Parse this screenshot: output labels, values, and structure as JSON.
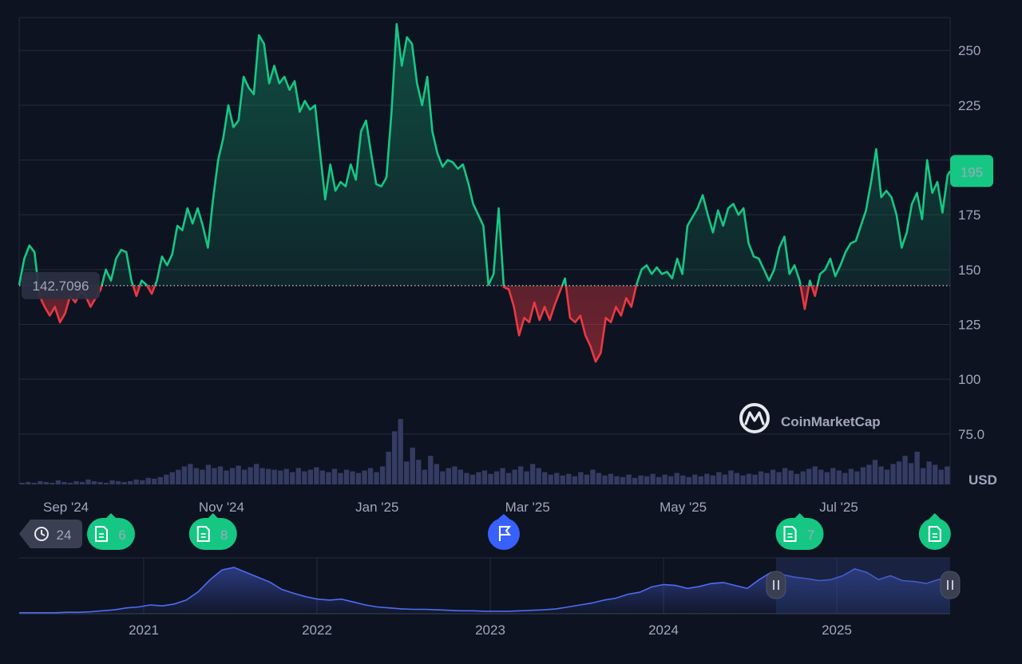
{
  "chart_data": {
    "type": "area",
    "currency_label": "USD",
    "baseline": {
      "value": 142.7096,
      "label": "142.7096"
    },
    "last_price": {
      "value": 195,
      "label": "195"
    },
    "y_axis": {
      "ticks": [
        75,
        100,
        125,
        150,
        175,
        200,
        225,
        250
      ],
      "labels": [
        "75.0",
        "100",
        "125",
        "150",
        "175",
        "",
        "225",
        "250"
      ],
      "ylim": [
        52,
        265
      ]
    },
    "x_axis": {
      "range": [
        "2024-08-24",
        "2025-08-24"
      ],
      "ticks": [
        {
          "date": "2024-09-01",
          "label": "Sep '24"
        },
        {
          "date": "2024-11-01",
          "label": "Nov '24"
        },
        {
          "date": "2025-01-01",
          "label": "Jan '25"
        },
        {
          "date": "2025-03-01",
          "label": "Mar '25"
        },
        {
          "date": "2025-05-01",
          "label": "May '25"
        },
        {
          "date": "2025-07-01",
          "label": "Jul '25"
        }
      ]
    },
    "colors": {
      "up": "#16c784",
      "down": "#ea3943",
      "volume": "#343c63",
      "navigator": "#4f6bf2",
      "flag": "#3861fb"
    },
    "series": [
      {
        "values": [
          [
            "2024-08-24",
            143
          ],
          [
            "2024-08-26",
            155
          ],
          [
            "2024-08-28",
            161
          ],
          [
            "2024-08-30",
            158
          ],
          [
            "2024-09-01",
            138
          ],
          [
            "2024-09-03",
            133
          ],
          [
            "2024-09-05",
            129
          ],
          [
            "2024-09-07",
            133
          ],
          [
            "2024-09-09",
            126
          ],
          [
            "2024-09-11",
            130
          ],
          [
            "2024-09-13",
            138
          ],
          [
            "2024-09-15",
            135
          ],
          [
            "2024-09-17",
            140
          ],
          [
            "2024-09-19",
            138
          ],
          [
            "2024-09-21",
            133
          ],
          [
            "2024-09-23",
            137
          ],
          [
            "2024-09-25",
            141
          ],
          [
            "2024-09-27",
            150
          ],
          [
            "2024-09-29",
            145
          ],
          [
            "2024-10-01",
            155
          ],
          [
            "2024-10-03",
            159
          ],
          [
            "2024-10-05",
            158
          ],
          [
            "2024-10-07",
            145
          ],
          [
            "2024-10-09",
            138
          ],
          [
            "2024-10-11",
            145
          ],
          [
            "2024-10-13",
            143
          ],
          [
            "2024-10-15",
            139
          ],
          [
            "2024-10-17",
            145
          ],
          [
            "2024-10-19",
            156
          ],
          [
            "2024-10-21",
            152
          ],
          [
            "2024-10-23",
            157
          ],
          [
            "2024-10-25",
            170
          ],
          [
            "2024-10-27",
            168
          ],
          [
            "2024-10-29",
            178
          ],
          [
            "2024-10-31",
            171
          ],
          [
            "2024-11-02",
            178
          ],
          [
            "2024-11-04",
            170
          ],
          [
            "2024-11-06",
            160
          ],
          [
            "2024-11-08",
            182
          ],
          [
            "2024-11-10",
            200
          ],
          [
            "2024-11-12",
            210
          ],
          [
            "2024-11-14",
            225
          ],
          [
            "2024-11-16",
            215
          ],
          [
            "2024-11-18",
            218
          ],
          [
            "2024-11-20",
            238
          ],
          [
            "2024-11-22",
            233
          ],
          [
            "2024-11-24",
            230
          ],
          [
            "2024-11-26",
            257
          ],
          [
            "2024-11-28",
            253
          ],
          [
            "2024-11-30",
            235
          ],
          [
            "2024-12-02",
            243
          ],
          [
            "2024-12-04",
            235
          ],
          [
            "2024-12-06",
            238
          ],
          [
            "2024-12-08",
            232
          ],
          [
            "2024-12-10",
            236
          ],
          [
            "2024-12-12",
            222
          ],
          [
            "2024-12-14",
            227
          ],
          [
            "2024-12-16",
            223
          ],
          [
            "2024-12-18",
            225
          ],
          [
            "2024-12-20",
            203
          ],
          [
            "2024-12-22",
            182
          ],
          [
            "2024-12-24",
            198
          ],
          [
            "2024-12-26",
            186
          ],
          [
            "2024-12-28",
            190
          ],
          [
            "2024-12-30",
            188
          ],
          [
            "2025-01-01",
            198
          ],
          [
            "2025-01-03",
            191
          ],
          [
            "2025-01-05",
            213
          ],
          [
            "2025-01-07",
            218
          ],
          [
            "2025-01-09",
            203
          ],
          [
            "2025-01-11",
            189
          ],
          [
            "2025-01-13",
            188
          ],
          [
            "2025-01-15",
            192
          ],
          [
            "2025-01-17",
            222
          ],
          [
            "2025-01-19",
            262
          ],
          [
            "2025-01-21",
            243
          ],
          [
            "2025-01-23",
            256
          ],
          [
            "2025-01-25",
            253
          ],
          [
            "2025-01-27",
            235
          ],
          [
            "2025-01-29",
            225
          ],
          [
            "2025-01-31",
            238
          ],
          [
            "2025-02-02",
            213
          ],
          [
            "2025-02-04",
            203
          ],
          [
            "2025-02-06",
            197
          ],
          [
            "2025-02-08",
            200
          ],
          [
            "2025-02-10",
            199
          ],
          [
            "2025-02-12",
            196
          ],
          [
            "2025-02-14",
            198
          ],
          [
            "2025-02-16",
            190
          ],
          [
            "2025-02-18",
            180
          ],
          [
            "2025-02-20",
            175
          ],
          [
            "2025-02-22",
            170
          ],
          [
            "2025-02-24",
            143
          ],
          [
            "2025-02-26",
            148
          ],
          [
            "2025-02-28",
            178
          ],
          [
            "2025-03-02",
            142
          ],
          [
            "2025-03-04",
            141
          ],
          [
            "2025-03-06",
            133
          ],
          [
            "2025-03-08",
            120
          ],
          [
            "2025-03-10",
            128
          ],
          [
            "2025-03-12",
            126
          ],
          [
            "2025-03-14",
            135
          ],
          [
            "2025-03-16",
            127
          ],
          [
            "2025-03-18",
            133
          ],
          [
            "2025-03-20",
            127
          ],
          [
            "2025-03-22",
            134
          ],
          [
            "2025-03-24",
            140
          ],
          [
            "2025-03-26",
            146
          ],
          [
            "2025-03-28",
            128
          ],
          [
            "2025-03-30",
            126
          ],
          [
            "2025-04-01",
            129
          ],
          [
            "2025-04-03",
            120
          ],
          [
            "2025-04-05",
            115
          ],
          [
            "2025-04-07",
            108
          ],
          [
            "2025-04-09",
            112
          ],
          [
            "2025-04-11",
            128
          ],
          [
            "2025-04-13",
            126
          ],
          [
            "2025-04-15",
            133
          ],
          [
            "2025-04-17",
            129
          ],
          [
            "2025-04-19",
            137
          ],
          [
            "2025-04-21",
            133
          ],
          [
            "2025-04-23",
            143
          ],
          [
            "2025-04-25",
            150
          ],
          [
            "2025-04-27",
            152
          ],
          [
            "2025-04-29",
            148
          ],
          [
            "2025-05-01",
            151
          ],
          [
            "2025-05-03",
            148
          ],
          [
            "2025-05-05",
            149
          ],
          [
            "2025-05-07",
            146
          ],
          [
            "2025-05-09",
            155
          ],
          [
            "2025-05-11",
            148
          ],
          [
            "2025-05-13",
            170
          ],
          [
            "2025-05-15",
            174
          ],
          [
            "2025-05-17",
            178
          ],
          [
            "2025-05-19",
            184
          ],
          [
            "2025-05-21",
            175
          ],
          [
            "2025-05-23",
            167
          ],
          [
            "2025-05-25",
            177
          ],
          [
            "2025-05-27",
            170
          ],
          [
            "2025-05-29",
            178
          ],
          [
            "2025-05-31",
            180
          ],
          [
            "2025-06-02",
            175
          ],
          [
            "2025-06-04",
            178
          ],
          [
            "2025-06-06",
            162
          ],
          [
            "2025-06-08",
            156
          ],
          [
            "2025-06-10",
            155
          ],
          [
            "2025-06-12",
            150
          ],
          [
            "2025-06-14",
            145
          ],
          [
            "2025-06-16",
            150
          ],
          [
            "2025-06-18",
            160
          ],
          [
            "2025-06-20",
            165
          ],
          [
            "2025-06-22",
            148
          ],
          [
            "2025-06-24",
            152
          ],
          [
            "2025-06-26",
            145
          ],
          [
            "2025-06-28",
            132
          ],
          [
            "2025-06-30",
            145
          ],
          [
            "2025-07-02",
            138
          ],
          [
            "2025-07-04",
            148
          ],
          [
            "2025-07-06",
            150
          ],
          [
            "2025-07-08",
            155
          ],
          [
            "2025-07-10",
            147
          ],
          [
            "2025-07-12",
            152
          ],
          [
            "2025-07-14",
            158
          ],
          [
            "2025-07-16",
            162
          ],
          [
            "2025-07-18",
            163
          ],
          [
            "2025-07-20",
            170
          ],
          [
            "2025-07-22",
            177
          ],
          [
            "2025-07-24",
            190
          ],
          [
            "2025-07-26",
            205
          ],
          [
            "2025-07-28",
            183
          ],
          [
            "2025-07-30",
            186
          ],
          [
            "2025-08-01",
            183
          ],
          [
            "2025-08-03",
            175
          ],
          [
            "2025-08-05",
            160
          ],
          [
            "2025-08-07",
            167
          ],
          [
            "2025-08-09",
            180
          ],
          [
            "2025-08-11",
            185
          ],
          [
            "2025-08-13",
            173
          ],
          [
            "2025-08-15",
            200
          ],
          [
            "2025-08-17",
            185
          ],
          [
            "2025-08-19",
            190
          ],
          [
            "2025-08-21",
            176
          ],
          [
            "2025-08-23",
            193
          ],
          [
            "2025-08-24",
            195
          ]
        ]
      }
    ],
    "volume": [
      2,
      3,
      2,
      4,
      3,
      2,
      5,
      3,
      2,
      4,
      3,
      6,
      4,
      3,
      2,
      5,
      4,
      3,
      4,
      6,
      5,
      8,
      7,
      9,
      12,
      15,
      18,
      22,
      25,
      20,
      18,
      24,
      20,
      22,
      17,
      20,
      23,
      18,
      21,
      25,
      20,
      19,
      18,
      17,
      19,
      15,
      20,
      16,
      18,
      21,
      17,
      15,
      19,
      14,
      18,
      16,
      14,
      17,
      20,
      15,
      22,
      40,
      65,
      80,
      28,
      45,
      30,
      18,
      35,
      25,
      16,
      20,
      22,
      18,
      14,
      12,
      15,
      17,
      13,
      16,
      20,
      14,
      18,
      22,
      16,
      25,
      20,
      15,
      12,
      14,
      11,
      13,
      10,
      15,
      12,
      18,
      14,
      11,
      13,
      10,
      9,
      12,
      8,
      11,
      10,
      13,
      9,
      12,
      10,
      14,
      11,
      9,
      12,
      10,
      13,
      11,
      15,
      12,
      17,
      14,
      11,
      13,
      12,
      16,
      14,
      18,
      15,
      20,
      17,
      13,
      16,
      19,
      22,
      18,
      15,
      20,
      17,
      14,
      19,
      16,
      21,
      24,
      30,
      22,
      18,
      25,
      28,
      35,
      26,
      40,
      20,
      28,
      24,
      18,
      22
    ],
    "events": [
      {
        "type": "history",
        "label": "24",
        "date": "2024-08-24"
      },
      {
        "type": "news",
        "label": "6",
        "date": "2024-09-29"
      },
      {
        "type": "news",
        "label": "8",
        "date": "2024-11-08"
      },
      {
        "type": "flag",
        "label": "",
        "date": "2025-03-02"
      },
      {
        "type": "news",
        "label": "7",
        "date": "2025-06-26"
      },
      {
        "type": "news",
        "label": "",
        "date": "2025-08-18"
      }
    ],
    "navigator": {
      "years": [
        "2021",
        "2022",
        "2023",
        "2024",
        "2025"
      ],
      "values": [
        2,
        2,
        2,
        2,
        3,
        3,
        4,
        6,
        8,
        12,
        14,
        18,
        16,
        20,
        28,
        45,
        70,
        90,
        95,
        85,
        75,
        65,
        50,
        42,
        35,
        30,
        28,
        30,
        24,
        18,
        14,
        12,
        10,
        9,
        9,
        8,
        7,
        6,
        6,
        5,
        5,
        5,
        6,
        7,
        8,
        10,
        14,
        18,
        22,
        28,
        32,
        40,
        44,
        55,
        60,
        58,
        52,
        56,
        62,
        64,
        58,
        52,
        70,
        85,
        80,
        75,
        72,
        68,
        70,
        78,
        92,
        85,
        70,
        78,
        68,
        66,
        62,
        70,
        75
      ]
    },
    "brand": "CoinMarketCap"
  }
}
